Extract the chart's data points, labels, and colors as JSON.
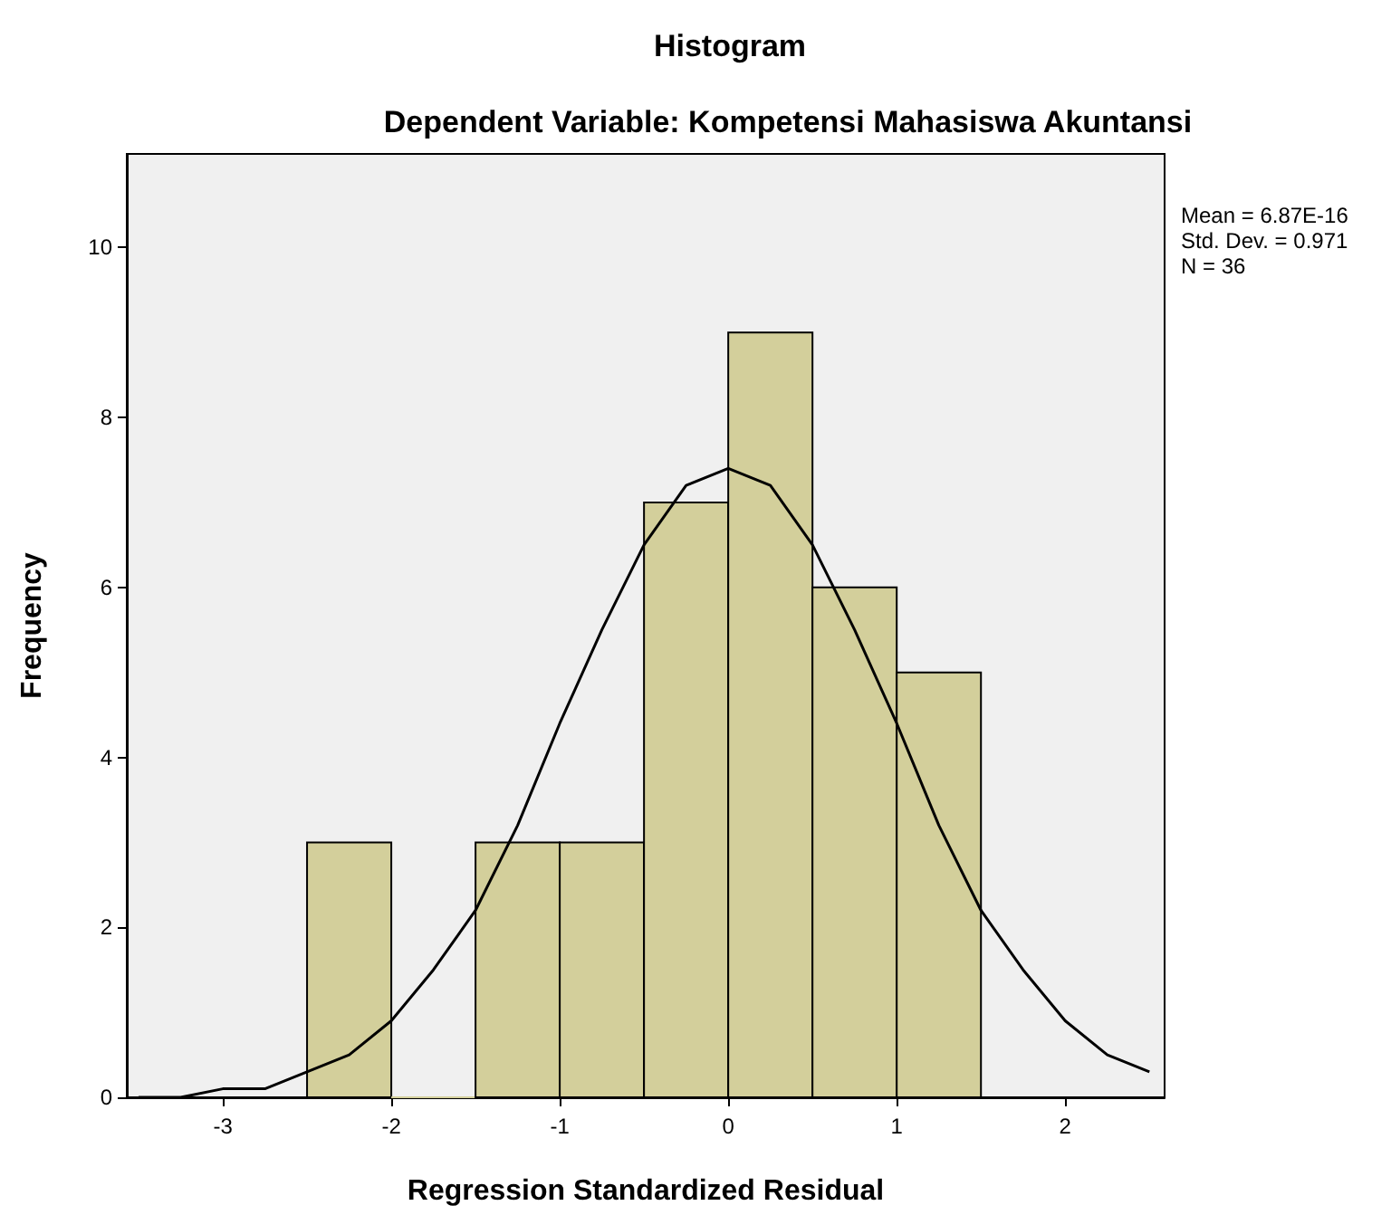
{
  "chart_data": {
    "type": "histogram",
    "title": "Histogram",
    "subtitle": "Dependent Variable: Kompetensi Mahasiswa Akuntansi",
    "xlabel": "Regression Standardized Residual",
    "ylabel": "Frequency",
    "bins": [
      -2.5,
      -2,
      -1.5,
      -1,
      -0.5,
      0,
      0.5,
      1,
      1.5
    ],
    "series": [
      {
        "color": "#d3cf9b",
        "values": [
          3,
          0,
          3,
          3,
          7,
          9,
          6,
          5
        ]
      },
      {
        "type": "line",
        "color": "#000000",
        "x": [
          -3.5,
          -3.25,
          -3,
          -2.75,
          -2.5,
          -2.25,
          -2,
          -1.75,
          -1.5,
          -1.25,
          -1,
          -0.75,
          -0.5,
          -0.25,
          0,
          0.25,
          0.5,
          0.75,
          1,
          1.25,
          1.5,
          1.75,
          2,
          2.25,
          2.5
        ],
        "values": [
          0.0,
          0.0,
          0.1,
          0.1,
          0.3,
          0.5,
          0.9,
          1.5,
          2.2,
          3.2,
          4.4,
          5.5,
          6.5,
          7.2,
          7.4,
          7.2,
          6.5,
          5.5,
          4.4,
          3.2,
          2.2,
          1.5,
          0.9,
          0.5,
          0.3
        ]
      }
    ],
    "xlim": [
      -3.57,
      2.59
    ],
    "xticks": [
      -3,
      -2,
      -1,
      0,
      1,
      2
    ],
    "ylim": [
      0,
      11.1
    ],
    "yticks": [
      0,
      2,
      4,
      6,
      8,
      10
    ],
    "grid": false,
    "marker": "none",
    "line_style": "solid",
    "annotations": [
      "Mean = 6.87E-16",
      "Std. Dev. = 0.971",
      "N = 36"
    ]
  }
}
